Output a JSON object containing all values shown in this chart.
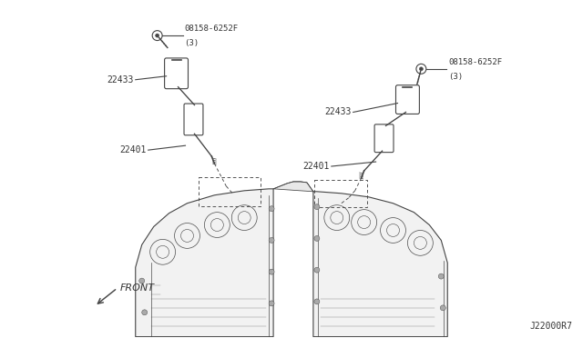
{
  "title": "",
  "background_color": "#ffffff",
  "fig_width": 6.4,
  "fig_height": 3.72,
  "dpi": 100,
  "labels": {
    "part1_bolt": "08158-6252F",
    "part1_bolt_sub": "(3)",
    "part1_coil": "22433",
    "part1_spark": "22401",
    "part2_bolt": "08158-6252F",
    "part2_bolt_sub": "(3)",
    "part2_coil": "22433",
    "part2_spark": "22401",
    "front_label": "FRONT",
    "diagram_id": "J22000R7"
  },
  "colors": {
    "line_color": "#444444",
    "text_color": "#333333",
    "bg": "#ffffff"
  }
}
